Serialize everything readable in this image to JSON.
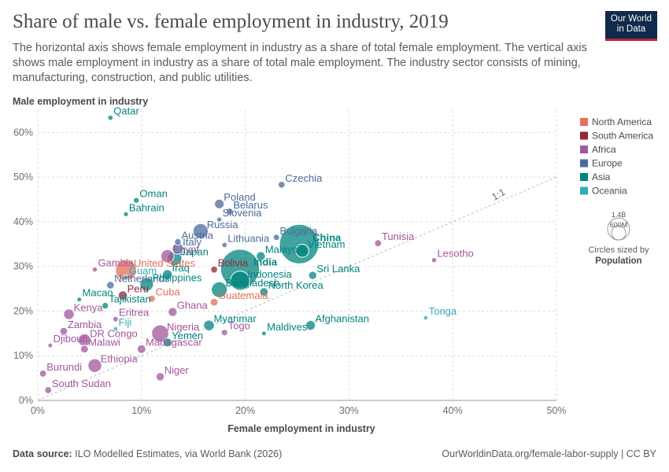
{
  "header": {
    "title": "Share of male vs. female employment in industry, 2019",
    "subtitle": "The horizontal axis shows female employment in industry as a share of total female employment. The vertical axis shows male employment in industry as a share of total male employment. The industry sector consists of mining, manufacturing, construction, and public utilities.",
    "logo_line1": "Our World",
    "logo_line2": "in Data"
  },
  "footer": {
    "source_label": "Data source:",
    "source_text": "ILO Modelled Estimates, via World Bank (2026)",
    "url_license": "OurWorldinData.org/female-labor-supply | CC BY"
  },
  "chart_data": {
    "type": "scatter",
    "title": "Share of male vs. female employment in industry, 2019",
    "xlabel": "Female employment in industry",
    "ylabel": "Male employment in industry",
    "xlim": [
      0,
      50
    ],
    "ylim": [
      0,
      65
    ],
    "x_ticks": [
      "0%",
      "10%",
      "20%",
      "30%",
      "40%",
      "50%"
    ],
    "y_ticks": [
      "0%",
      "10%",
      "20%",
      "30%",
      "40%",
      "50%",
      "60%"
    ],
    "x_tick_values": [
      0,
      10,
      20,
      30,
      40,
      50
    ],
    "y_tick_values": [
      0,
      10,
      20,
      30,
      40,
      50,
      60
    ],
    "grid": true,
    "reference_line_label": "1:1",
    "legend": [
      {
        "name": "North America",
        "color": "#e56e5a"
      },
      {
        "name": "South America",
        "color": "#932834"
      },
      {
        "name": "Africa",
        "color": "#a2559c"
      },
      {
        "name": "Europe",
        "color": "#4c6a9c"
      },
      {
        "name": "Asia",
        "color": "#00847e"
      },
      {
        "name": "Oceania",
        "color": "#38aaba"
      }
    ],
    "legend_placement": "right",
    "size_legend": {
      "title_line1": "Circles sized by",
      "title_line2": "Population",
      "large_label": "1.4B",
      "small_label": "600M"
    },
    "points": [
      {
        "label": "Qatar",
        "x": 7.0,
        "y": 63.3,
        "region": "Asia",
        "pop": 2.8
      },
      {
        "label": "Czechia",
        "x": 23.5,
        "y": 48.3,
        "region": "Europe",
        "pop": 10.7
      },
      {
        "label": "Oman",
        "x": 9.5,
        "y": 44.8,
        "region": "Asia",
        "pop": 4.6
      },
      {
        "label": "Poland",
        "x": 17.5,
        "y": 44.0,
        "region": "Europe",
        "pop": 38
      },
      {
        "label": "Belarus",
        "x": 18.5,
        "y": 42.3,
        "region": "Europe",
        "pop": 9.4
      },
      {
        "label": "Bahrain",
        "x": 8.5,
        "y": 41.7,
        "region": "Asia",
        "pop": 1.6
      },
      {
        "label": "Slovenia",
        "x": 17.5,
        "y": 40.5,
        "region": "Europe",
        "pop": 2.1
      },
      {
        "label": "China",
        "x": 25.2,
        "y": 35.0,
        "region": "Asia",
        "pop": 1420
      },
      {
        "label": "Russia",
        "x": 15.7,
        "y": 37.9,
        "region": "Europe",
        "pop": 145
      },
      {
        "label": "Austria",
        "x": 13.5,
        "y": 35.5,
        "region": "Europe",
        "pop": 8.9
      },
      {
        "label": "Bulgaria",
        "x": 23.0,
        "y": 36.5,
        "region": "Europe",
        "pop": 7.0
      },
      {
        "label": "Tunisia",
        "x": 32.8,
        "y": 35.2,
        "region": "Africa",
        "pop": 11.7
      },
      {
        "label": "Italy",
        "x": 13.5,
        "y": 34.0,
        "region": "Europe",
        "pop": 60
      },
      {
        "label": "Lithuania",
        "x": 18.0,
        "y": 34.8,
        "region": "Europe",
        "pop": 2.8
      },
      {
        "label": "Vietnam",
        "x": 25.5,
        "y": 33.5,
        "region": "Asia",
        "pop": 96
      },
      {
        "label": "Egypt",
        "x": 12.5,
        "y": 32.3,
        "region": "Africa",
        "pop": 100
      },
      {
        "label": "Japan",
        "x": 13.2,
        "y": 31.8,
        "region": "Asia",
        "pop": 126
      },
      {
        "label": "Malaysia",
        "x": 21.5,
        "y": 32.3,
        "region": "Asia",
        "pop": 32
      },
      {
        "label": "Lesotho",
        "x": 38.2,
        "y": 31.4,
        "region": "Africa",
        "pop": 2.1
      },
      {
        "label": "India",
        "x": 19.5,
        "y": 29.5,
        "region": "Asia",
        "pop": 1380
      },
      {
        "label": "Gambia",
        "x": 5.5,
        "y": 29.3,
        "region": "Africa",
        "pop": 2.4
      },
      {
        "label": "United States",
        "x": 8.5,
        "y": 29.2,
        "region": "North America",
        "pop": 331
      },
      {
        "label": "Guam",
        "x": 8.5,
        "y": 27.6,
        "region": "Oceania",
        "pop": 0.17
      },
      {
        "label": "Iraq",
        "x": 12.5,
        "y": 28.2,
        "region": "Asia",
        "pop": 40
      },
      {
        "label": "Bolivia",
        "x": 17.0,
        "y": 29.3,
        "region": "South America",
        "pop": 11.6
      },
      {
        "label": "Sri Lanka",
        "x": 26.5,
        "y": 28.0,
        "region": "Asia",
        "pop": 21.8
      },
      {
        "label": "Indonesia",
        "x": 19.5,
        "y": 26.8,
        "region": "Asia",
        "pop": 270
      },
      {
        "label": "Netherlands",
        "x": 7.0,
        "y": 25.8,
        "region": "Europe",
        "pop": 17.3
      },
      {
        "label": "Philippines",
        "x": 10.5,
        "y": 26.0,
        "region": "Asia",
        "pop": 108
      },
      {
        "label": "North Korea",
        "x": 21.8,
        "y": 24.3,
        "region": "Asia",
        "pop": 25.7
      },
      {
        "label": "Peru",
        "x": 8.2,
        "y": 23.5,
        "region": "South America",
        "pop": 32.5
      },
      {
        "label": "Bangladesh",
        "x": 17.5,
        "y": 24.8,
        "region": "Asia",
        "pop": 163
      },
      {
        "label": "Cuba",
        "x": 11.0,
        "y": 22.8,
        "region": "North America",
        "pop": 11.3
      },
      {
        "label": "Macao",
        "x": 4.0,
        "y": 22.6,
        "region": "Asia",
        "pop": 0.64
      },
      {
        "label": "Guatemala",
        "x": 17.0,
        "y": 22.0,
        "region": "North America",
        "pop": 17.6
      },
      {
        "label": "Tajikistan",
        "x": 6.5,
        "y": 21.2,
        "region": "Asia",
        "pop": 9.3
      },
      {
        "label": "Ghana",
        "x": 13.0,
        "y": 19.8,
        "region": "Africa",
        "pop": 30.4
      },
      {
        "label": "Kenya",
        "x": 3.0,
        "y": 19.3,
        "region": "Africa",
        "pop": 52.5
      },
      {
        "label": "Tonga",
        "x": 37.4,
        "y": 18.5,
        "region": "Oceania",
        "pop": 0.1
      },
      {
        "label": "Eritrea",
        "x": 7.5,
        "y": 18.2,
        "region": "Africa",
        "pop": 3.5
      },
      {
        "label": "Myanmar",
        "x": 16.5,
        "y": 16.8,
        "region": "Asia",
        "pop": 54
      },
      {
        "label": "Nigeria",
        "x": 11.8,
        "y": 15.0,
        "region": "Africa",
        "pop": 200
      },
      {
        "label": "Afghanistan",
        "x": 26.3,
        "y": 16.8,
        "region": "Asia",
        "pop": 38
      },
      {
        "label": "Zambia",
        "x": 2.5,
        "y": 15.5,
        "region": "Africa",
        "pop": 17.9
      },
      {
        "label": "Fiji",
        "x": 7.5,
        "y": 16.0,
        "region": "Oceania",
        "pop": 0.9
      },
      {
        "label": "Togo",
        "x": 18.0,
        "y": 15.2,
        "region": "Africa",
        "pop": 8.1
      },
      {
        "label": "Maldives",
        "x": 21.8,
        "y": 15.0,
        "region": "Asia",
        "pop": 0.53
      },
      {
        "label": "DR Congo",
        "x": 4.5,
        "y": 13.5,
        "region": "Africa",
        "pop": 87
      },
      {
        "label": "Yemen",
        "x": 12.5,
        "y": 13.0,
        "region": "Asia",
        "pop": 29
      },
      {
        "label": "Malawi",
        "x": 4.5,
        "y": 11.5,
        "region": "Africa",
        "pop": 18.6
      },
      {
        "label": "Madagascar",
        "x": 10.0,
        "y": 11.5,
        "region": "Africa",
        "pop": 27
      },
      {
        "label": "Djibouti",
        "x": 1.2,
        "y": 12.3,
        "region": "Africa",
        "pop": 1.0
      },
      {
        "label": "Ethiopia",
        "x": 5.5,
        "y": 7.8,
        "region": "Africa",
        "pop": 112
      },
      {
        "label": "Burundi",
        "x": 0.5,
        "y": 6.0,
        "region": "Africa",
        "pop": 11.5
      },
      {
        "label": "Niger",
        "x": 11.8,
        "y": 5.3,
        "region": "Africa",
        "pop": 23
      },
      {
        "label": "South Sudan",
        "x": 1.0,
        "y": 2.3,
        "region": "Africa",
        "pop": 11
      }
    ]
  }
}
